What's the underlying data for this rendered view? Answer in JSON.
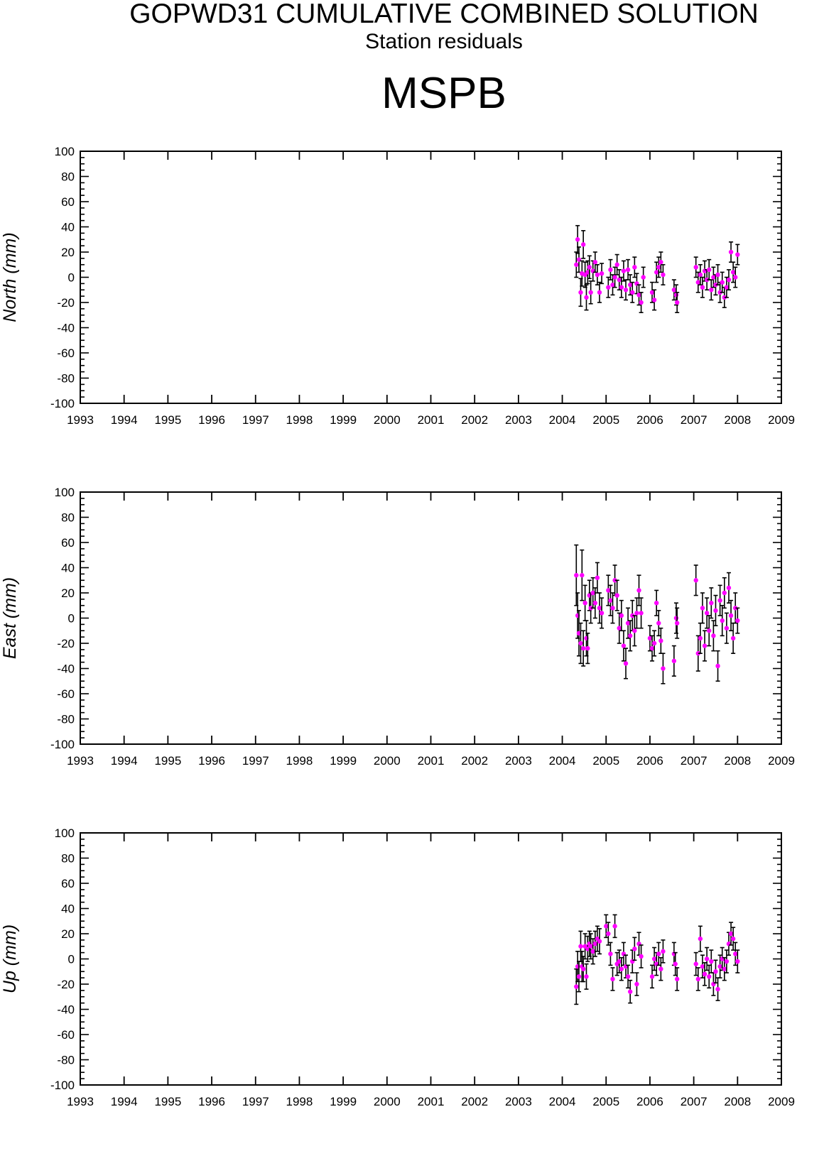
{
  "header": {
    "title": "GOPWD31 CUMULATIVE COMBINED SOLUTION",
    "subtitle": "Station residuals",
    "station": "MSPB"
  },
  "colors": {
    "marker": "#ff00ff",
    "errorbar": "#000000",
    "axis": "#000000",
    "background": "#ffffff"
  },
  "chart_data": [
    {
      "type": "scatter",
      "ylabel": "North (mm)",
      "xlim": [
        1993,
        2009
      ],
      "ylim": [
        -100,
        100
      ],
      "xticks": [
        "1993",
        "1994",
        "1995",
        "1996",
        "1997",
        "1998",
        "1999",
        "2000",
        "2001",
        "2002",
        "2003",
        "2004",
        "2005",
        "2006",
        "2007",
        "2008",
        "2009"
      ],
      "yticks": [
        "100",
        "80",
        "60",
        "40",
        "20",
        "0",
        "-20",
        "-40",
        "-60",
        "-80",
        "-100"
      ],
      "error_bars": true,
      "points": [
        [
          2004.32,
          10,
          10
        ],
        [
          2004.35,
          30,
          11
        ],
        [
          2004.38,
          14,
          10
        ],
        [
          2004.42,
          -12,
          11
        ],
        [
          2004.45,
          3,
          10
        ],
        [
          2004.48,
          26,
          11
        ],
        [
          2004.52,
          2,
          10
        ],
        [
          2004.55,
          -16,
          10
        ],
        [
          2004.58,
          4,
          9
        ],
        [
          2004.62,
          8,
          9
        ],
        [
          2004.65,
          -12,
          9
        ],
        [
          2004.7,
          5,
          8
        ],
        [
          2004.75,
          12,
          8
        ],
        [
          2004.8,
          2,
          8
        ],
        [
          2004.85,
          -12,
          8
        ],
        [
          2004.9,
          3,
          8
        ],
        [
          2005.05,
          -8,
          8
        ],
        [
          2005.1,
          6,
          8
        ],
        [
          2005.15,
          -6,
          8
        ],
        [
          2005.2,
          0,
          8
        ],
        [
          2005.25,
          10,
          8
        ],
        [
          2005.3,
          -2,
          8
        ],
        [
          2005.35,
          -8,
          8
        ],
        [
          2005.4,
          5,
          8
        ],
        [
          2005.45,
          -10,
          8
        ],
        [
          2005.5,
          6,
          8
        ],
        [
          2005.55,
          -6,
          8
        ],
        [
          2005.6,
          -12,
          8
        ],
        [
          2005.65,
          8,
          8
        ],
        [
          2005.7,
          -5,
          8
        ],
        [
          2005.75,
          -14,
          8
        ],
        [
          2005.8,
          -20,
          8
        ],
        [
          2005.85,
          0,
          8
        ],
        [
          2006.05,
          -12,
          8
        ],
        [
          2006.1,
          -18,
          8
        ],
        [
          2006.15,
          4,
          8
        ],
        [
          2006.2,
          8,
          8
        ],
        [
          2006.25,
          12,
          8
        ],
        [
          2006.3,
          2,
          8
        ],
        [
          2006.55,
          -10,
          8
        ],
        [
          2006.6,
          -14,
          8
        ],
        [
          2006.62,
          -20,
          8
        ],
        [
          2007.05,
          8,
          8
        ],
        [
          2007.1,
          -4,
          8
        ],
        [
          2007.15,
          2,
          8
        ],
        [
          2007.2,
          -8,
          8
        ],
        [
          2007.25,
          5,
          8
        ],
        [
          2007.3,
          -2,
          8
        ],
        [
          2007.35,
          6,
          8
        ],
        [
          2007.4,
          -10,
          8
        ],
        [
          2007.45,
          0,
          8
        ],
        [
          2007.5,
          -6,
          8
        ],
        [
          2007.55,
          2,
          8
        ],
        [
          2007.6,
          -12,
          8
        ],
        [
          2007.65,
          -4,
          8
        ],
        [
          2007.7,
          -16,
          8
        ],
        [
          2007.75,
          -8,
          8
        ],
        [
          2007.8,
          -2,
          8
        ],
        [
          2007.85,
          20,
          8
        ],
        [
          2007.9,
          4,
          8
        ],
        [
          2007.95,
          0,
          8
        ],
        [
          2008.0,
          18,
          8
        ]
      ]
    },
    {
      "type": "scatter",
      "ylabel": "East (mm)",
      "xlim": [
        1993,
        2009
      ],
      "ylim": [
        -100,
        100
      ],
      "xticks": [
        "1993",
        "1994",
        "1995",
        "1996",
        "1997",
        "1998",
        "1999",
        "2000",
        "2001",
        "2002",
        "2003",
        "2004",
        "2005",
        "2006",
        "2007",
        "2008",
        "2009"
      ],
      "yticks": [
        "100",
        "80",
        "60",
        "40",
        "20",
        "0",
        "-20",
        "-40",
        "-60",
        "-80",
        "-100"
      ],
      "error_bars": true,
      "points": [
        [
          2004.32,
          34,
          24
        ],
        [
          2004.35,
          2,
          18
        ],
        [
          2004.38,
          -12,
          18
        ],
        [
          2004.42,
          -20,
          16
        ],
        [
          2004.45,
          34,
          20
        ],
        [
          2004.48,
          -24,
          14
        ],
        [
          2004.52,
          12,
          14
        ],
        [
          2004.55,
          -16,
          14
        ],
        [
          2004.58,
          -24,
          12
        ],
        [
          2004.62,
          18,
          12
        ],
        [
          2004.65,
          8,
          12
        ],
        [
          2004.7,
          20,
          12
        ],
        [
          2004.75,
          12,
          12
        ],
        [
          2004.8,
          32,
          12
        ],
        [
          2004.85,
          8,
          12
        ],
        [
          2004.9,
          4,
          12
        ],
        [
          2005.05,
          22,
          12
        ],
        [
          2005.1,
          14,
          12
        ],
        [
          2005.15,
          8,
          12
        ],
        [
          2005.2,
          30,
          12
        ],
        [
          2005.25,
          18,
          12
        ],
        [
          2005.3,
          -8,
          12
        ],
        [
          2005.35,
          2,
          12
        ],
        [
          2005.4,
          -22,
          12
        ],
        [
          2005.45,
          -36,
          12
        ],
        [
          2005.5,
          -4,
          12
        ],
        [
          2005.55,
          -14,
          12
        ],
        [
          2005.6,
          2,
          12
        ],
        [
          2005.65,
          -10,
          12
        ],
        [
          2005.7,
          4,
          12
        ],
        [
          2005.75,
          22,
          12
        ],
        [
          2005.8,
          4,
          12
        ],
        [
          2006.0,
          -16,
          10
        ],
        [
          2006.05,
          -24,
          10
        ],
        [
          2006.1,
          -20,
          10
        ],
        [
          2006.15,
          12,
          10
        ],
        [
          2006.2,
          -4,
          10
        ],
        [
          2006.25,
          -18,
          10
        ],
        [
          2006.3,
          -40,
          12
        ],
        [
          2006.55,
          -34,
          12
        ],
        [
          2006.6,
          0,
          12
        ],
        [
          2006.62,
          -4,
          12
        ],
        [
          2007.05,
          30,
          12
        ],
        [
          2007.1,
          -28,
          14
        ],
        [
          2007.15,
          -16,
          12
        ],
        [
          2007.2,
          8,
          12
        ],
        [
          2007.25,
          -22,
          12
        ],
        [
          2007.3,
          4,
          12
        ],
        [
          2007.35,
          -10,
          12
        ],
        [
          2007.4,
          12,
          12
        ],
        [
          2007.45,
          -14,
          12
        ],
        [
          2007.5,
          6,
          12
        ],
        [
          2007.55,
          -38,
          12
        ],
        [
          2007.6,
          14,
          12
        ],
        [
          2007.65,
          -2,
          12
        ],
        [
          2007.7,
          20,
          12
        ],
        [
          2007.75,
          -8,
          12
        ],
        [
          2007.8,
          24,
          12
        ],
        [
          2007.85,
          2,
          12
        ],
        [
          2007.9,
          -16,
          12
        ],
        [
          2007.95,
          8,
          12
        ],
        [
          2008.0,
          -2,
          10
        ]
      ]
    },
    {
      "type": "scatter",
      "ylabel": "Up (mm)",
      "xlim": [
        1993,
        2009
      ],
      "ylim": [
        -100,
        100
      ],
      "xticks": [
        "1993",
        "1994",
        "1995",
        "1996",
        "1997",
        "1998",
        "1999",
        "2000",
        "2001",
        "2002",
        "2003",
        "2004",
        "2005",
        "2006",
        "2007",
        "2008",
        "2009"
      ],
      "yticks": [
        "100",
        "80",
        "60",
        "40",
        "20",
        "0",
        "-20",
        "-40",
        "-60",
        "-80",
        "-100"
      ],
      "error_bars": true,
      "points": [
        [
          2004.32,
          -22,
          14
        ],
        [
          2004.35,
          -6,
          12
        ],
        [
          2004.38,
          -14,
          12
        ],
        [
          2004.42,
          10,
          12
        ],
        [
          2004.45,
          -6,
          12
        ],
        [
          2004.48,
          -8,
          10
        ],
        [
          2004.52,
          10,
          10
        ],
        [
          2004.55,
          -14,
          10
        ],
        [
          2004.58,
          8,
          10
        ],
        [
          2004.62,
          12,
          10
        ],
        [
          2004.65,
          10,
          10
        ],
        [
          2004.7,
          6,
          10
        ],
        [
          2004.75,
          12,
          10
        ],
        [
          2004.8,
          16,
          10
        ],
        [
          2004.85,
          14,
          10
        ],
        [
          2005.0,
          26,
          9
        ],
        [
          2005.05,
          20,
          9
        ],
        [
          2005.1,
          4,
          9
        ],
        [
          2005.15,
          -16,
          9
        ],
        [
          2005.2,
          26,
          9
        ],
        [
          2005.25,
          -4,
          9
        ],
        [
          2005.3,
          -2,
          9
        ],
        [
          2005.35,
          -8,
          9
        ],
        [
          2005.4,
          4,
          9
        ],
        [
          2005.45,
          -6,
          9
        ],
        [
          2005.5,
          -14,
          9
        ],
        [
          2005.55,
          -26,
          9
        ],
        [
          2005.6,
          -2,
          9
        ],
        [
          2005.65,
          8,
          9
        ],
        [
          2005.7,
          -20,
          9
        ],
        [
          2005.75,
          12,
          9
        ],
        [
          2005.8,
          2,
          9
        ],
        [
          2006.05,
          -14,
          9
        ],
        [
          2006.1,
          0,
          9
        ],
        [
          2006.15,
          -4,
          9
        ],
        [
          2006.2,
          4,
          9
        ],
        [
          2006.25,
          -8,
          9
        ],
        [
          2006.3,
          6,
          9
        ],
        [
          2006.55,
          4,
          9
        ],
        [
          2006.58,
          -4,
          9
        ],
        [
          2006.62,
          -16,
          9
        ],
        [
          2007.05,
          -4,
          9
        ],
        [
          2007.1,
          -16,
          9
        ],
        [
          2007.15,
          16,
          10
        ],
        [
          2007.2,
          -6,
          9
        ],
        [
          2007.25,
          -12,
          9
        ],
        [
          2007.3,
          0,
          9
        ],
        [
          2007.35,
          -14,
          9
        ],
        [
          2007.4,
          -2,
          9
        ],
        [
          2007.45,
          -20,
          9
        ],
        [
          2007.5,
          -10,
          9
        ],
        [
          2007.55,
          -24,
          9
        ],
        [
          2007.6,
          -6,
          9
        ],
        [
          2007.65,
          0,
          9
        ],
        [
          2007.7,
          -8,
          9
        ],
        [
          2007.75,
          -2,
          9
        ],
        [
          2007.8,
          12,
          9
        ],
        [
          2007.85,
          20,
          9
        ],
        [
          2007.9,
          16,
          9
        ],
        [
          2007.95,
          4,
          9
        ],
        [
          2008.0,
          -2,
          9
        ]
      ]
    }
  ]
}
